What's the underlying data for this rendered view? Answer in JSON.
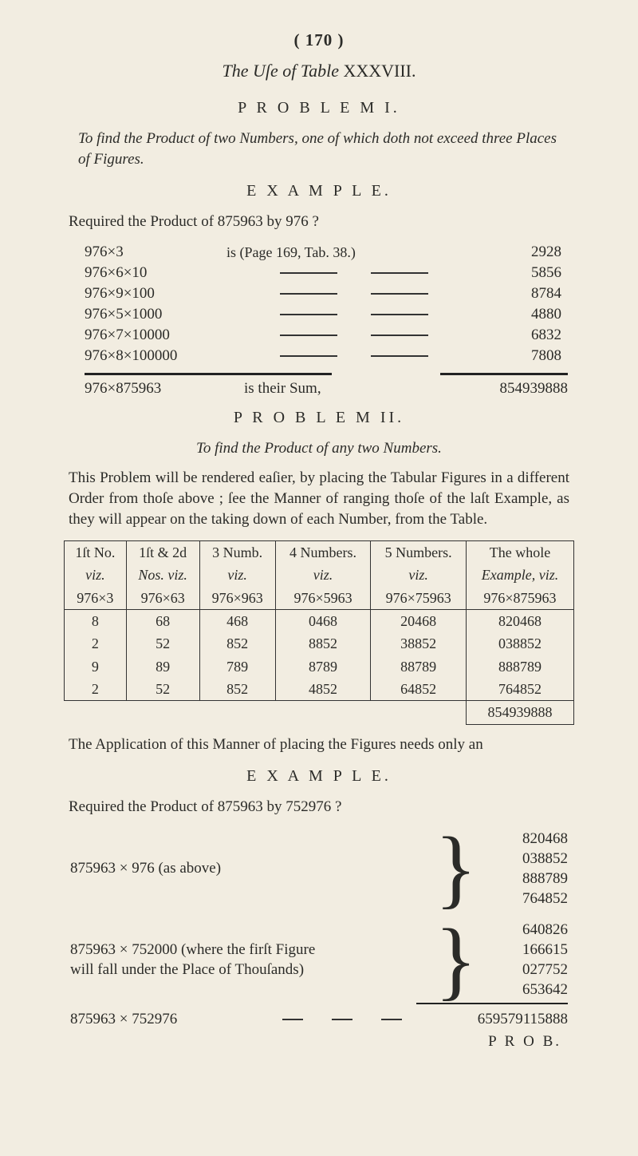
{
  "page_number": "( 170 )",
  "title_prefix": "The Uſe of Table",
  "title_num": "XXXVIII.",
  "problem1_head": "P R O B L E M  I.",
  "problem1_statement": "To find the Product of two Numbers, one of which doth not exceed three Places of Figures.",
  "example_head": "E X A M P L E.",
  "required1": "Required the Product of 875963 by 976 ?",
  "mults": [
    {
      "lhs": "976×3",
      "mid": "is (Page 169, Tab. 38.)",
      "rhs": "2928"
    },
    {
      "lhs": "976×6×10",
      "rhs": "5856"
    },
    {
      "lhs": "976×9×100",
      "rhs": "8784"
    },
    {
      "lhs": "976×5×1000",
      "rhs": "4880"
    },
    {
      "lhs": "976×7×10000",
      "rhs": "6832"
    },
    {
      "lhs": "976×8×100000",
      "rhs": "7808"
    }
  ],
  "sum": {
    "lhs": "976×875963",
    "mid": "is their Sum,",
    "rhs": "854939888"
  },
  "problem2_head": "P R O B L E M  II.",
  "problem2_statement": "To find the Product of any two Numbers.",
  "explain": "This Problem will be rendered eaſier, by placing the Tabular Figures in a different Order from thoſe above ; ſee the Manner of ranging thoſe of the laſt Example, as they will appear on the taking down of each Number, from the Table.",
  "table": {
    "hdr1": [
      "1ſt No.",
      "1ſt & 2d",
      "3 Numb.",
      "4 Numbers.",
      "5 Numbers.",
      "The whole"
    ],
    "hdr2": [
      "viz.",
      "Nos. viz.",
      "viz.",
      "viz.",
      "viz.",
      "Example, viz."
    ],
    "hdr3": [
      "976×3",
      "976×63",
      "976×963",
      "976×5963",
      "976×75963",
      "976×875963"
    ],
    "rows": [
      [
        "8",
        "68",
        "468",
        "0468",
        "20468",
        "820468"
      ],
      [
        "2",
        "52",
        "852",
        "8852",
        "38852",
        "038852"
      ],
      [
        "9",
        "89",
        "789",
        "8789",
        "88789",
        "888789"
      ],
      [
        "2",
        "52",
        "852",
        "4852",
        "64852",
        "764852"
      ]
    ],
    "total": "854939888"
  },
  "app_text": "The Application of this Manner of placing the Figures needs only an",
  "example_head2": "E X A M P L E.",
  "required2": "Required the Product of 875963 by 752976 ?",
  "brace1": {
    "left": "875963   ×   976  (as above)",
    "nums": [
      "820468",
      "038852",
      "888789",
      "764852"
    ]
  },
  "brace2": {
    "left_a": "875963 × 752000  (where  the  firſt  Figure",
    "left_b": "will fall under the Place of Thouſands)",
    "nums": [
      "640826",
      "166615",
      "027752",
      "653642"
    ]
  },
  "final": {
    "lhs": "875963 × 752976",
    "rhs": "659579115888"
  },
  "prob_label": "P R O B."
}
